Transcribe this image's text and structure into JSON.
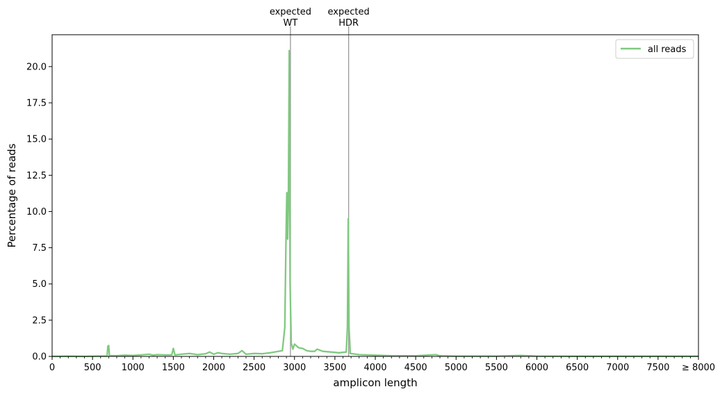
{
  "chart_data": {
    "type": "line",
    "xlabel": "amplicon length",
    "ylabel": "Percentage of reads",
    "xlim": [
      0,
      8000
    ],
    "ylim": [
      0,
      22.2
    ],
    "x_ticks": [
      0,
      500,
      1000,
      1500,
      2000,
      2500,
      3000,
      3500,
      4000,
      4500,
      5000,
      5500,
      6000,
      6500,
      7000,
      7500,
      8000
    ],
    "x_tick_labels": [
      "0",
      "500",
      "1000",
      "1500",
      "2000",
      "2500",
      "3000",
      "3500",
      "4000",
      "4500",
      "5000",
      "5500",
      "6000",
      "6500",
      "7000",
      "7500",
      "≥ 8000"
    ],
    "y_ticks": [
      0,
      2.5,
      5,
      7.5,
      10,
      12.5,
      15,
      17.5,
      20
    ],
    "y_tick_labels": [
      "0.0",
      "2.5",
      "5.0",
      "7.5",
      "10.0",
      "12.5",
      "15.0",
      "17.5",
      "20.0"
    ],
    "legend": {
      "placement": "top-right"
    },
    "grid": false,
    "markers": [
      {
        "x": 2950,
        "label_line1": "expected",
        "label_line2": "WT"
      },
      {
        "x": 3670,
        "label_line1": "expected",
        "label_line2": "HDR"
      }
    ],
    "series": [
      {
        "name": "all reads",
        "color": "#7fc97f",
        "points": [
          [
            0,
            0.0
          ],
          [
            200,
            0.01
          ],
          [
            400,
            0.0
          ],
          [
            600,
            0.02
          ],
          [
            680,
            0.02
          ],
          [
            690,
            0.7
          ],
          [
            700,
            0.75
          ],
          [
            710,
            0.05
          ],
          [
            800,
            0.05
          ],
          [
            900,
            0.08
          ],
          [
            1000,
            0.06
          ],
          [
            1100,
            0.1
          ],
          [
            1200,
            0.15
          ],
          [
            1250,
            0.08
          ],
          [
            1300,
            0.12
          ],
          [
            1400,
            0.1
          ],
          [
            1480,
            0.1
          ],
          [
            1500,
            0.55
          ],
          [
            1520,
            0.1
          ],
          [
            1600,
            0.15
          ],
          [
            1700,
            0.2
          ],
          [
            1800,
            0.12
          ],
          [
            1900,
            0.18
          ],
          [
            1950,
            0.3
          ],
          [
            2000,
            0.15
          ],
          [
            2050,
            0.25
          ],
          [
            2100,
            0.2
          ],
          [
            2200,
            0.15
          ],
          [
            2300,
            0.2
          ],
          [
            2350,
            0.4
          ],
          [
            2400,
            0.15
          ],
          [
            2500,
            0.2
          ],
          [
            2600,
            0.18
          ],
          [
            2700,
            0.25
          ],
          [
            2800,
            0.35
          ],
          [
            2850,
            0.4
          ],
          [
            2880,
            2.0
          ],
          [
            2895,
            8.0
          ],
          [
            2905,
            11.3
          ],
          [
            2915,
            8.1
          ],
          [
            2925,
            11.0
          ],
          [
            2935,
            21.1
          ],
          [
            2945,
            5.0
          ],
          [
            2960,
            0.9
          ],
          [
            2980,
            0.5
          ],
          [
            3000,
            0.85
          ],
          [
            3050,
            0.6
          ],
          [
            3100,
            0.55
          ],
          [
            3150,
            0.4
          ],
          [
            3200,
            0.35
          ],
          [
            3250,
            0.35
          ],
          [
            3280,
            0.5
          ],
          [
            3350,
            0.35
          ],
          [
            3450,
            0.3
          ],
          [
            3550,
            0.25
          ],
          [
            3640,
            0.3
          ],
          [
            3655,
            2.0
          ],
          [
            3665,
            9.5
          ],
          [
            3675,
            2.0
          ],
          [
            3690,
            0.2
          ],
          [
            3800,
            0.12
          ],
          [
            4000,
            0.08
          ],
          [
            4200,
            0.05
          ],
          [
            4500,
            0.04
          ],
          [
            4750,
            0.12
          ],
          [
            4800,
            0.04
          ],
          [
            5000,
            0.02
          ],
          [
            5500,
            0.02
          ],
          [
            5800,
            0.06
          ],
          [
            6000,
            0.02
          ],
          [
            6500,
            0.01
          ],
          [
            7000,
            0.01
          ],
          [
            7500,
            0.01
          ],
          [
            8000,
            0.01
          ]
        ]
      }
    ]
  }
}
